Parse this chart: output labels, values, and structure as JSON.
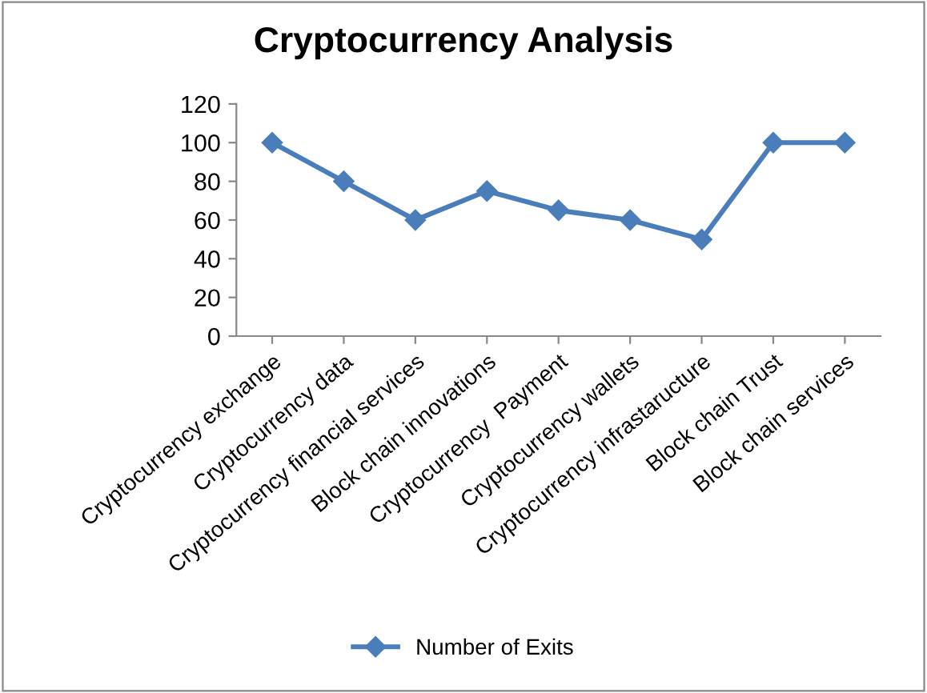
{
  "chart_data": {
    "type": "line",
    "title": "Cryptocurrency Analysis",
    "categories": [
      "Cryptocurrency exchange",
      "Cryptocurrency data",
      "Cryptocurrency financial services",
      "Block chain innovations",
      "Cryptocurrency  Payment",
      "Cryptocurrency wallets",
      "Cryptocurrency infrastaructure",
      "Block chain Trust",
      "Block chain services"
    ],
    "series": [
      {
        "name": "Number of Exits",
        "color": "#4a7ebb",
        "values": [
          100,
          80,
          60,
          75,
          65,
          60,
          50,
          100,
          100
        ]
      }
    ],
    "ylim": [
      0,
      120
    ],
    "yticks": [
      0,
      20,
      40,
      60,
      80,
      100,
      120
    ],
    "grid": false,
    "legend": "bottom",
    "marker": "diamond",
    "line_style": "solid"
  }
}
